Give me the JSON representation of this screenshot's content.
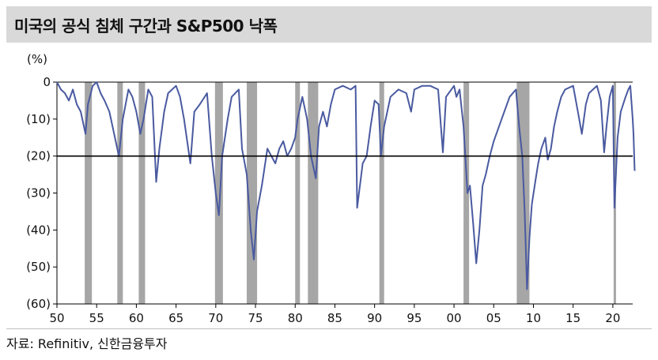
{
  "title": "미국의 공식 침체 구간과 S&P500 낙폭",
  "source": "자료: Refinitiv, 신한금융투자",
  "chart_data": {
    "type": "area",
    "unit_label": "(%)",
    "ylim": [
      -60,
      0
    ],
    "xlim": [
      1950,
      2022.5
    ],
    "y_ticks": [
      0,
      -10,
      -20,
      -30,
      -40,
      -50,
      -60
    ],
    "y_tick_labels": [
      "0",
      "(10)",
      "(20)",
      "(30)",
      "(40)",
      "(50)",
      "(60)"
    ],
    "x_ticks": [
      1950,
      1955,
      1960,
      1965,
      1970,
      1975,
      1980,
      1985,
      1990,
      1995,
      2000,
      2005,
      2010,
      2015,
      2020
    ],
    "x_tick_labels": [
      "50",
      "55",
      "60",
      "65",
      "70",
      "75",
      "80",
      "85",
      "90",
      "95",
      "00",
      "05",
      "10",
      "15",
      "20"
    ],
    "reference_line": -20,
    "line_color": "#4a5aa0",
    "recession_color": "#a6a6a6",
    "recessions": [
      [
        1953.5,
        1954.4
      ],
      [
        1957.6,
        1958.3
      ],
      [
        1960.3,
        1961.1
      ],
      [
        1969.9,
        1970.9
      ],
      [
        1973.9,
        1975.2
      ],
      [
        1980.0,
        1980.6
      ],
      [
        1981.6,
        1982.9
      ],
      [
        1990.6,
        1991.2
      ],
      [
        2001.2,
        2001.9
      ],
      [
        2007.9,
        2009.5
      ],
      [
        2020.1,
        2020.4
      ]
    ],
    "x": [
      1950.0,
      1950.5,
      1951.0,
      1951.5,
      1952.0,
      1952.5,
      1953.0,
      1953.6,
      1953.9,
      1954.5,
      1955.0,
      1955.5,
      1956.0,
      1956.6,
      1957.0,
      1957.8,
      1958.3,
      1959.0,
      1959.5,
      1960.0,
      1960.5,
      1960.9,
      1961.5,
      1962.0,
      1962.5,
      1962.9,
      1963.5,
      1964.0,
      1965.0,
      1965.5,
      1966.0,
      1966.8,
      1967.3,
      1968.0,
      1968.9,
      1969.5,
      1970.0,
      1970.4,
      1970.8,
      1971.5,
      1972.0,
      1972.9,
      1973.3,
      1973.9,
      1974.4,
      1974.8,
      1975.2,
      1975.8,
      1976.5,
      1977.0,
      1977.5,
      1978.0,
      1978.5,
      1979.0,
      1979.5,
      1980.0,
      1980.3,
      1980.9,
      1981.5,
      1982.0,
      1982.6,
      1983.0,
      1983.5,
      1984.0,
      1984.5,
      1985.0,
      1986.0,
      1987.0,
      1987.6,
      1987.8,
      1988.5,
      1989.0,
      1989.5,
      1990.0,
      1990.5,
      1990.8,
      1991.2,
      1992.0,
      1993.0,
      1994.0,
      1994.6,
      1995.0,
      1996.0,
      1997.0,
      1998.0,
      1998.6,
      1999.0,
      2000.0,
      2000.3,
      2000.7,
      2001.2,
      2001.7,
      2002.0,
      2002.4,
      2002.8,
      2003.2,
      2003.6,
      2004.0,
      2004.5,
      2005.0,
      2006.0,
      2007.0,
      2007.8,
      2008.2,
      2008.6,
      2008.9,
      2009.2,
      2009.5,
      2009.8,
      2010.3,
      2010.6,
      2011.0,
      2011.5,
      2011.8,
      2012.2,
      2012.6,
      2013.0,
      2013.5,
      2014.0,
      2015.0,
      2015.6,
      2016.1,
      2016.6,
      2017.0,
      2018.0,
      2018.5,
      2018.9,
      2019.2,
      2019.6,
      2020.0,
      2020.2,
      2020.6,
      2021.0,
      2021.6,
      2021.95,
      2022.2,
      2022.5,
      2022.6,
      2022.75
    ],
    "y": [
      0,
      -2,
      -3,
      -5,
      -2,
      -6,
      -8,
      -14,
      -6,
      -1,
      0,
      -3,
      -5,
      -8,
      -12,
      -20,
      -10,
      -2,
      -4,
      -8,
      -14,
      -10,
      -2,
      -4,
      -27,
      -18,
      -8,
      -3,
      -1,
      -4,
      -10,
      -22,
      -8,
      -6,
      -3,
      -20,
      -30,
      -36,
      -20,
      -10,
      -4,
      -2,
      -18,
      -25,
      -40,
      -48,
      -35,
      -28,
      -18,
      -20,
      -22,
      -18,
      -16,
      -20,
      -18,
      -15,
      -10,
      -4,
      -10,
      -20,
      -26,
      -12,
      -8,
      -12,
      -6,
      -2,
      -1,
      -2,
      -1,
      -34,
      -22,
      -20,
      -12,
      -5,
      -6,
      -20,
      -12,
      -4,
      -2,
      -3,
      -8,
      -2,
      -1,
      -1,
      -2,
      -19,
      -4,
      -1,
      -4,
      -2,
      -12,
      -30,
      -28,
      -38,
      -49,
      -40,
      -28,
      -25,
      -20,
      -16,
      -10,
      -4,
      -2,
      -12,
      -20,
      -35,
      -56,
      -42,
      -33,
      -26,
      -22,
      -18,
      -15,
      -21,
      -18,
      -12,
      -8,
      -4,
      -2,
      -1,
      -8,
      -14,
      -6,
      -3,
      -1,
      -5,
      -19,
      -12,
      -4,
      -1,
      -34,
      -15,
      -8,
      -4,
      -2,
      -1,
      -10,
      -14,
      -24
    ]
  }
}
